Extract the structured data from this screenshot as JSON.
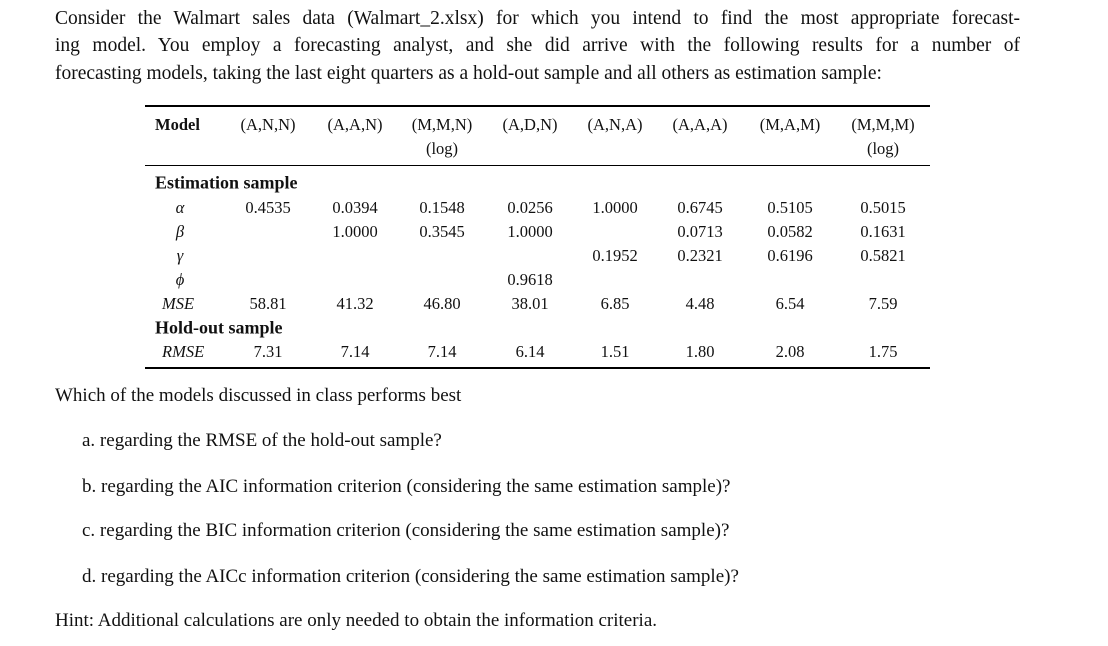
{
  "intro": {
    "lines": [
      "Consider the Walmart sales data (Walmart_2.xlsx) for which you intend to find the most appropriate forecast-",
      "ing model. You employ a forecasting analyst, and she did arrive with the following results for a number of",
      "forecasting models, taking the last eight quarters as a hold-out sample and all others as estimation sample:"
    ]
  },
  "table": {
    "header": "Model",
    "columns": [
      {
        "label": "(A,N,N)"
      },
      {
        "label": "(A,A,N)"
      },
      {
        "label": "(M,M,N)",
        "sub": "(log)"
      },
      {
        "label": "(A,D,N)"
      },
      {
        "label": "(A,N,A)"
      },
      {
        "label": "(A,A,A)"
      },
      {
        "label": "(M,A,M)"
      },
      {
        "label": "(M,M,M)",
        "sub": "(log)"
      }
    ],
    "sections": [
      {
        "title": "Estimation sample",
        "rows": [
          {
            "label": "α",
            "cells": [
              "0.4535",
              "0.0394",
              "0.1548",
              "0.0256",
              "1.0000",
              "0.6745",
              "0.5105",
              "0.5015"
            ]
          },
          {
            "label": "β",
            "cells": [
              null,
              "1.0000",
              "0.3545",
              "1.0000",
              null,
              "0.0713",
              "0.0582",
              "0.1631"
            ]
          },
          {
            "label": "γ",
            "cells": [
              null,
              null,
              null,
              null,
              "0.1952",
              "0.2321",
              "0.6196",
              "0.5821"
            ]
          },
          {
            "label": "ϕ",
            "cells": [
              null,
              null,
              null,
              "0.9618",
              null,
              null,
              null,
              null
            ]
          },
          {
            "label": "MSE",
            "cells": [
              "58.81",
              "41.32",
              "46.80",
              "38.01",
              "6.85",
              "4.48",
              "6.54",
              "7.59"
            ]
          }
        ]
      },
      {
        "title": "Hold-out sample",
        "rows": [
          {
            "label": "RMSE",
            "cells": [
              "7.31",
              "7.14",
              "7.14",
              "6.14",
              "1.51",
              "1.80",
              "2.08",
              "1.75"
            ]
          }
        ]
      }
    ]
  },
  "question": {
    "prompt": "Which of the models discussed in class performs best",
    "items": [
      "a. regarding the RMSE of the hold-out sample?",
      "b. regarding the AIC information criterion (considering the same estimation sample)?",
      "c. regarding the BIC information criterion (considering the same estimation sample)?",
      "d. regarding the AICc information criterion (considering the same estimation sample)?"
    ]
  },
  "hint": "Hint: Additional calculations are only needed to obtain the information criteria."
}
